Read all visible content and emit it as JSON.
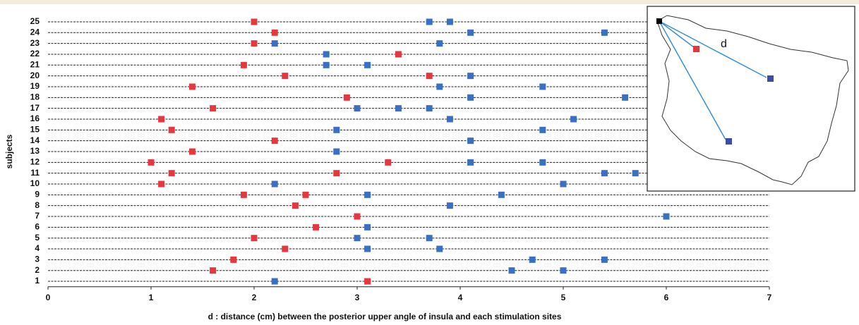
{
  "chart_data": {
    "type": "scatter",
    "x_label": "d : distance (cm) between the posterior upper angle of insula and each stimulation sites",
    "y_label": "subjects",
    "xlim": [
      0,
      7
    ],
    "xticks": [
      0,
      1,
      2,
      3,
      4,
      5,
      6,
      7
    ],
    "ylim": [
      0.5,
      25.5
    ],
    "yticks": [
      1,
      2,
      3,
      4,
      5,
      6,
      7,
      8,
      9,
      10,
      11,
      12,
      13,
      14,
      15,
      16,
      17,
      18,
      19,
      20,
      21,
      22,
      23,
      24,
      25
    ],
    "grid": true,
    "series": [
      {
        "color": "#e8363e",
        "x": [
          2.0,
          2.2,
          2.0,
          3.4,
          1.9,
          2.3,
          3.7,
          1.4,
          2.9,
          1.6,
          1.1,
          1.2,
          2.2,
          1.4,
          1.0,
          3.3,
          1.2,
          2.8,
          1.1,
          1.9,
          2.5,
          2.4,
          3.0,
          2.6,
          2.0,
          2.3,
          1.8,
          1.6,
          3.1
        ],
        "y": [
          25,
          24,
          23,
          22,
          21,
          20,
          20,
          19,
          18,
          17,
          16,
          15,
          14,
          13,
          12,
          12,
          11,
          11,
          10,
          9,
          9,
          8,
          7,
          6,
          5,
          4,
          3,
          2,
          1
        ]
      },
      {
        "color": "#3a6fc4",
        "x": [
          3.7,
          3.9,
          4.1,
          5.4,
          2.2,
          3.8,
          2.7,
          2.7,
          3.1,
          4.1,
          3.8,
          4.8,
          4.1,
          5.6,
          3.0,
          3.4,
          3.7,
          3.9,
          5.1,
          2.8,
          4.8,
          4.1,
          2.8,
          4.1,
          4.8,
          5.4,
          5.7,
          2.2,
          5.0,
          3.1,
          4.4,
          3.9,
          6.0,
          3.1,
          3.0,
          3.7,
          3.1,
          3.8,
          4.7,
          5.4,
          4.5,
          5.0,
          2.2
        ],
        "y": [
          25,
          25,
          24,
          24,
          23,
          23,
          22,
          21,
          21,
          20,
          19,
          19,
          18,
          18,
          17,
          17,
          17,
          16,
          16,
          15,
          15,
          14,
          13,
          12,
          12,
          11,
          11,
          10,
          10,
          9,
          9,
          8,
          7,
          6,
          5,
          5,
          4,
          4,
          3,
          3,
          2,
          2,
          1
        ]
      }
    ],
    "inset": {
      "label": "d"
    }
  }
}
